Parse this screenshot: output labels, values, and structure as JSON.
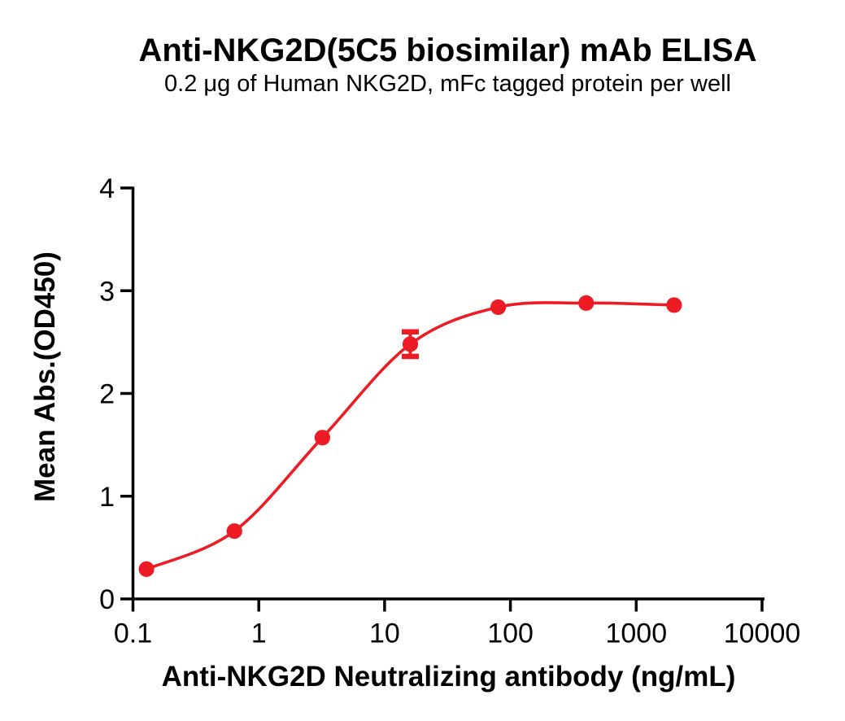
{
  "figure": {
    "background": "#ffffff",
    "text_color": "#000000"
  },
  "chart_data": {
    "type": "scatter",
    "title": "Anti-NKG2D(5C5 biosimilar) mAb ELISA",
    "subtitle": "0.2 μg of Human NKG2D, mFc tagged protein per well",
    "xlabel": "Anti-NKG2D Neutralizing antibody (ng/mL)",
    "ylabel": "Mean Abs.(OD450)",
    "x_scale": "log10",
    "xlim": [
      0.1,
      10000
    ],
    "ylim": [
      0,
      4
    ],
    "x_ticks": [
      0.1,
      1,
      10,
      100,
      1000,
      10000
    ],
    "x_tick_labels": [
      "0.1",
      "1",
      "10",
      "100",
      "1000",
      "10000"
    ],
    "y_ticks": [
      0,
      1,
      2,
      3,
      4
    ],
    "y_tick_labels": [
      "0",
      "1",
      "2",
      "3",
      "4"
    ],
    "grid": false,
    "legend_position": "none",
    "axis_color": "#000000",
    "series": [
      {
        "name": "Anti-NKG2D(5C5 biosimilar) mAb",
        "color": "#ED1C24",
        "marker": "circle",
        "line": "sigmoidal dose-response fit",
        "points": [
          {
            "x": 0.128,
            "y": 0.29
          },
          {
            "x": 0.64,
            "y": 0.66
          },
          {
            "x": 3.2,
            "y": 1.57
          },
          {
            "x": 16,
            "y": 2.48,
            "y_err": 0.12
          },
          {
            "x": 80,
            "y": 2.84
          },
          {
            "x": 400,
            "y": 2.88
          },
          {
            "x": 2000,
            "y": 2.86
          }
        ]
      }
    ]
  }
}
